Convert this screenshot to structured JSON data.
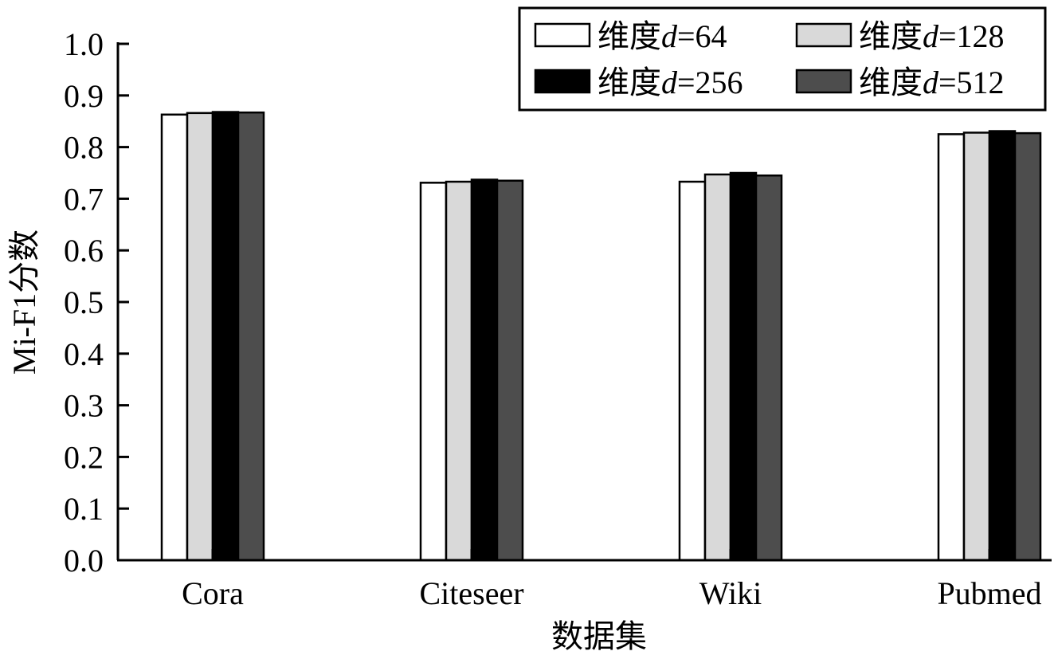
{
  "chart_data": {
    "type": "bar",
    "categories": [
      "Cora",
      "Citeseer",
      "Wiki",
      "Pubmed"
    ],
    "series": [
      {
        "name_prefix": "维度",
        "name_var": "d",
        "name_suffix": "=64",
        "color": "#ffffff",
        "values": [
          0.863,
          0.731,
          0.733,
          0.825
        ]
      },
      {
        "name_prefix": "维度",
        "name_var": "d",
        "name_suffix": "=128",
        "color": "#d9d9d9",
        "values": [
          0.866,
          0.733,
          0.747,
          0.828
        ]
      },
      {
        "name_prefix": "维度",
        "name_var": "d",
        "name_suffix": "=256",
        "color": "#000000",
        "values": [
          0.868,
          0.737,
          0.75,
          0.831
        ]
      },
      {
        "name_prefix": "维度",
        "name_var": "d",
        "name_suffix": "=512",
        "color": "#4d4d4d",
        "values": [
          0.867,
          0.735,
          0.745,
          0.827
        ]
      }
    ],
    "xlabel": "数据集",
    "ylabel": "Mi-F1分数",
    "ylim": [
      0.0,
      1.0
    ],
    "yticks": [
      "0.0",
      "0.1",
      "0.2",
      "0.3",
      "0.4",
      "0.5",
      "0.6",
      "0.7",
      "0.8",
      "0.9",
      "1.0"
    ],
    "legend_position": "top-right",
    "grid": false
  }
}
